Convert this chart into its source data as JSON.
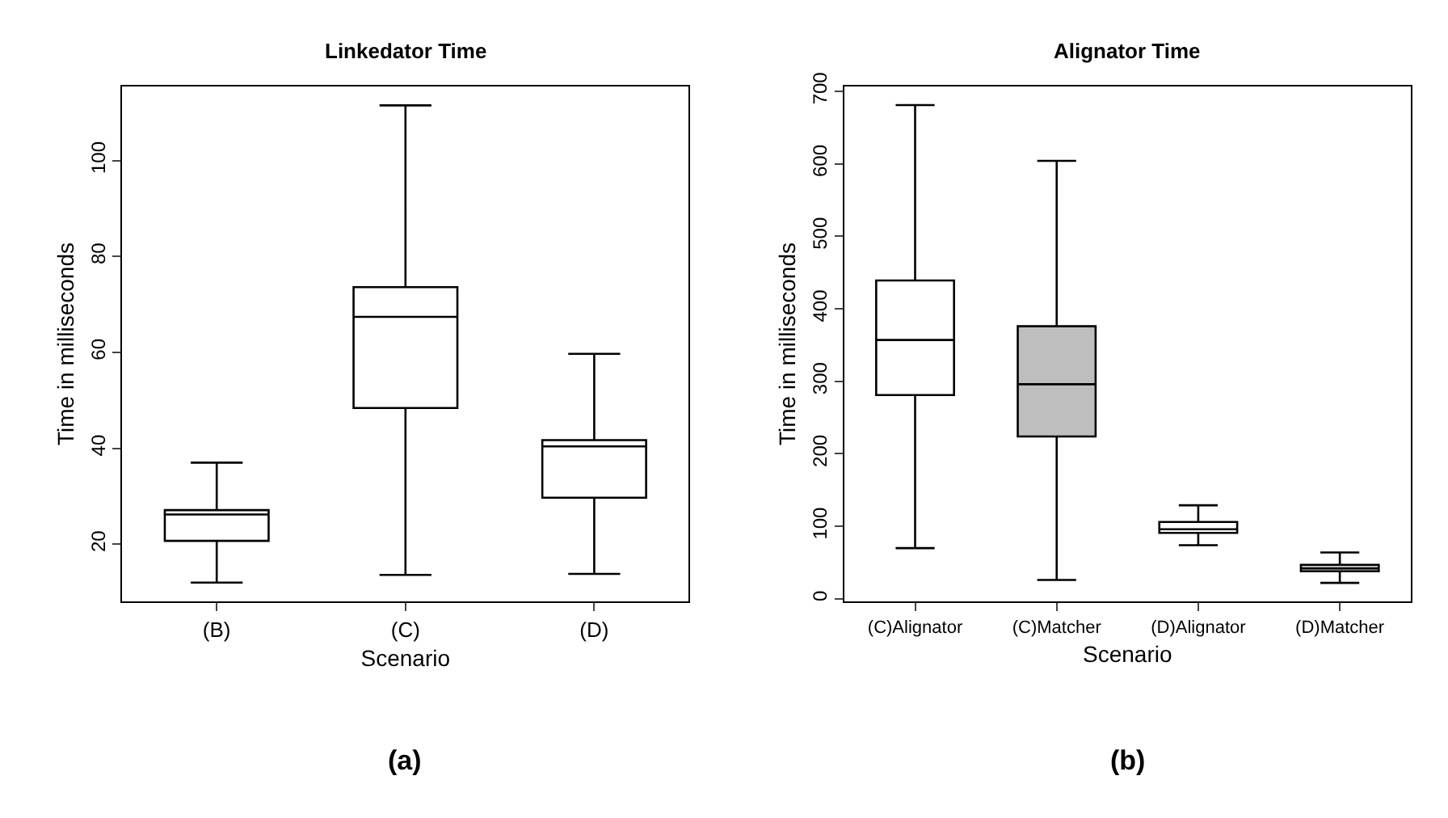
{
  "chart_data": [
    {
      "type": "box",
      "title": "Linkedator Time",
      "xlabel": "Scenario",
      "ylabel": "Time in milliseconds",
      "categories": [
        "(B)",
        "(C)",
        "(D)"
      ],
      "colors": [
        "#ffffff",
        "#ffffff",
        "#ffffff"
      ],
      "boxes": [
        {
          "low": 12,
          "q1": 20.7,
          "median": 26.2,
          "q3": 27.1,
          "high": 37
        },
        {
          "low": 13.6,
          "q1": 48.4,
          "median": 67.4,
          "q3": 73.6,
          "high": 111.5
        },
        {
          "low": 13.8,
          "q1": 29.7,
          "median": 40.4,
          "q3": 41.7,
          "high": 59.7
        }
      ],
      "ylim": [
        8,
        115.5
      ],
      "yticks": [
        20,
        40,
        60,
        80,
        100
      ],
      "annotations": [
        "(a)"
      ]
    },
    {
      "type": "box",
      "title": "Alignator Time",
      "xlabel": "Scenario",
      "ylabel": "Time in milliseconds",
      "categories": [
        "(C)Alignator",
        "(C)Matcher",
        "(D)Alignator",
        "(D)Matcher"
      ],
      "colors": [
        "#ffffff",
        "#bebebe",
        "#ffffff",
        "#bebebe"
      ],
      "boxes": [
        {
          "low": 70,
          "q1": 281,
          "median": 357,
          "q3": 439,
          "high": 681
        },
        {
          "low": 26,
          "q1": 224,
          "median": 296,
          "q3": 376,
          "high": 604
        },
        {
          "low": 74,
          "q1": 91,
          "median": 96,
          "q3": 106,
          "high": 129
        },
        {
          "low": 22,
          "q1": 38,
          "median": 42,
          "q3": 47,
          "high": 64
        }
      ],
      "ylim": [
        -4,
        707
      ],
      "yticks": [
        0,
        100,
        200,
        300,
        400,
        500,
        600,
        700
      ],
      "annotations": [
        "(b)"
      ]
    }
  ]
}
